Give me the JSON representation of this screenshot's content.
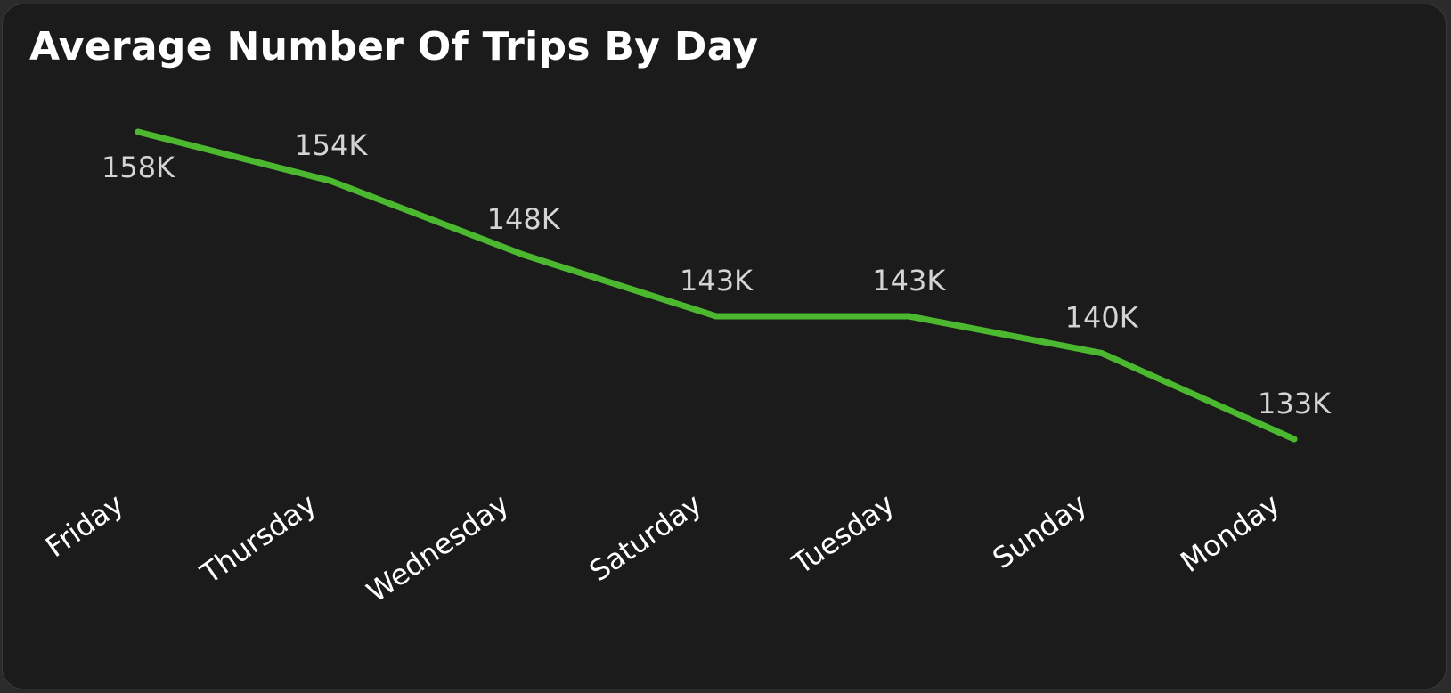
{
  "chart_data": {
    "type": "line",
    "title": "Average Number Of Trips By Day",
    "xlabel": "",
    "ylabel": "",
    "categories": [
      "Friday",
      "Thursday",
      "Wednesday",
      "Saturday",
      "Tuesday",
      "Sunday",
      "Monday"
    ],
    "series": [
      {
        "values": [
          158000,
          154000,
          148000,
          143000,
          143000,
          140000,
          133000
        ],
        "labels": [
          "158K",
          "154K",
          "148K",
          "143K",
          "143K",
          "140K",
          "133K"
        ],
        "color": "#4cb830"
      }
    ],
    "legend": "none",
    "grid": false
  }
}
